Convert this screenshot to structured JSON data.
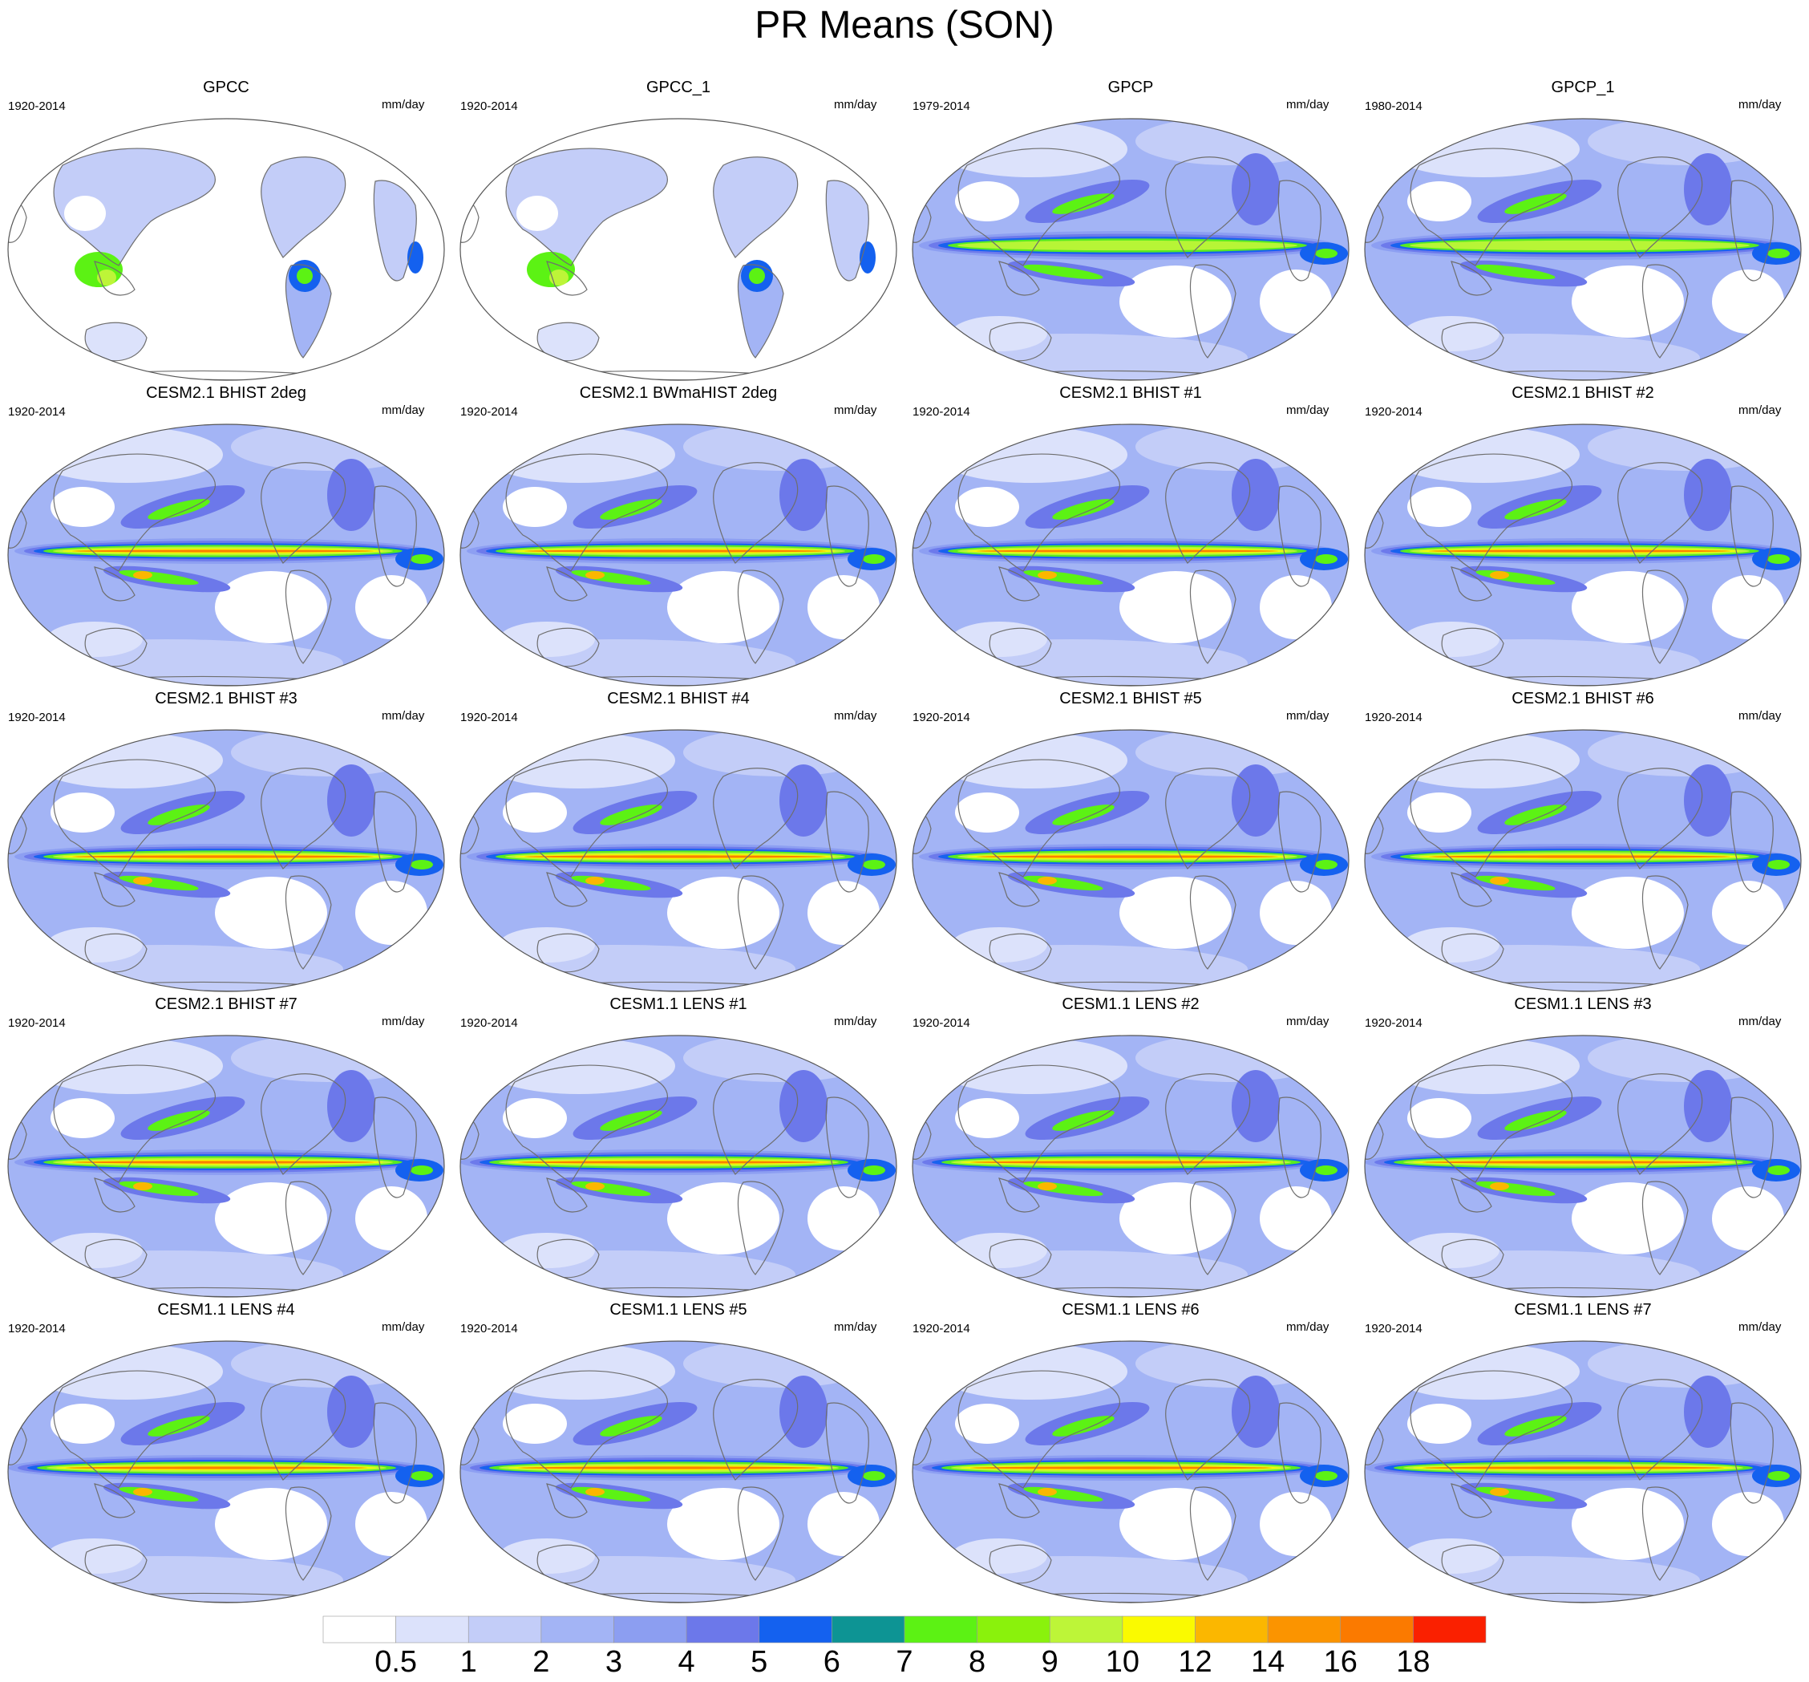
{
  "title": "PR Means (SON)",
  "panels": [
    {
      "title": "GPCC",
      "years": "1920-2014",
      "units": "mm/day",
      "kind": "gauge"
    },
    {
      "title": "GPCC_1",
      "years": "1920-2014",
      "units": "mm/day",
      "kind": "gauge"
    },
    {
      "title": "GPCP",
      "years": "1979-2014",
      "units": "mm/day",
      "kind": "obs"
    },
    {
      "title": "GPCP_1",
      "years": "1980-2014",
      "units": "mm/day",
      "kind": "obs"
    },
    {
      "title": "CESM2.1 BHIST 2deg",
      "years": "1920-2014",
      "units": "mm/day",
      "kind": "model"
    },
    {
      "title": "CESM2.1 BWmaHIST 2deg",
      "years": "1920-2014",
      "units": "mm/day",
      "kind": "model"
    },
    {
      "title": "CESM2.1 BHIST #1",
      "years": "1920-2014",
      "units": "mm/day",
      "kind": "model"
    },
    {
      "title": "CESM2.1 BHIST #2",
      "years": "1920-2014",
      "units": "mm/day",
      "kind": "model"
    },
    {
      "title": "CESM2.1 BHIST #3",
      "years": "1920-2014",
      "units": "mm/day",
      "kind": "model"
    },
    {
      "title": "CESM2.1 BHIST #4",
      "years": "1920-2014",
      "units": "mm/day",
      "kind": "model"
    },
    {
      "title": "CESM2.1 BHIST #5",
      "years": "1920-2014",
      "units": "mm/day",
      "kind": "model"
    },
    {
      "title": "CESM2.1 BHIST #6",
      "years": "1920-2014",
      "units": "mm/day",
      "kind": "model"
    },
    {
      "title": "CESM2.1 BHIST #7",
      "years": "1920-2014",
      "units": "mm/day",
      "kind": "model"
    },
    {
      "title": "CESM1.1 LENS #1",
      "years": "1920-2014",
      "units": "mm/day",
      "kind": "lens"
    },
    {
      "title": "CESM1.1 LENS #2",
      "years": "1920-2014",
      "units": "mm/day",
      "kind": "lens"
    },
    {
      "title": "CESM1.1 LENS #3",
      "years": "1920-2014",
      "units": "mm/day",
      "kind": "lens"
    },
    {
      "title": "CESM1.1 LENS #4",
      "years": "1920-2014",
      "units": "mm/day",
      "kind": "lens"
    },
    {
      "title": "CESM1.1 LENS #5",
      "years": "1920-2014",
      "units": "mm/day",
      "kind": "lens"
    },
    {
      "title": "CESM1.1 LENS #6",
      "years": "1920-2014",
      "units": "mm/day",
      "kind": "lens"
    },
    {
      "title": "CESM1.1 LENS #7",
      "years": "1920-2014",
      "units": "mm/day",
      "kind": "lens"
    }
  ],
  "colorbar": {
    "labels": [
      "0.5",
      "1",
      "2",
      "3",
      "4",
      "5",
      "6",
      "7",
      "8",
      "9",
      "10",
      "12",
      "14",
      "16",
      "18"
    ],
    "colors": [
      "#ffffff",
      "#dce2fb",
      "#c3cdf8",
      "#a3b4f5",
      "#8c9ef1",
      "#6c78ea",
      "#1461ef",
      "#0d9494",
      "#5cf214",
      "#8af20c",
      "#bdf538",
      "#fafa00",
      "#fbb700",
      "#fb9400",
      "#fb7a00",
      "#fa2000"
    ]
  }
}
